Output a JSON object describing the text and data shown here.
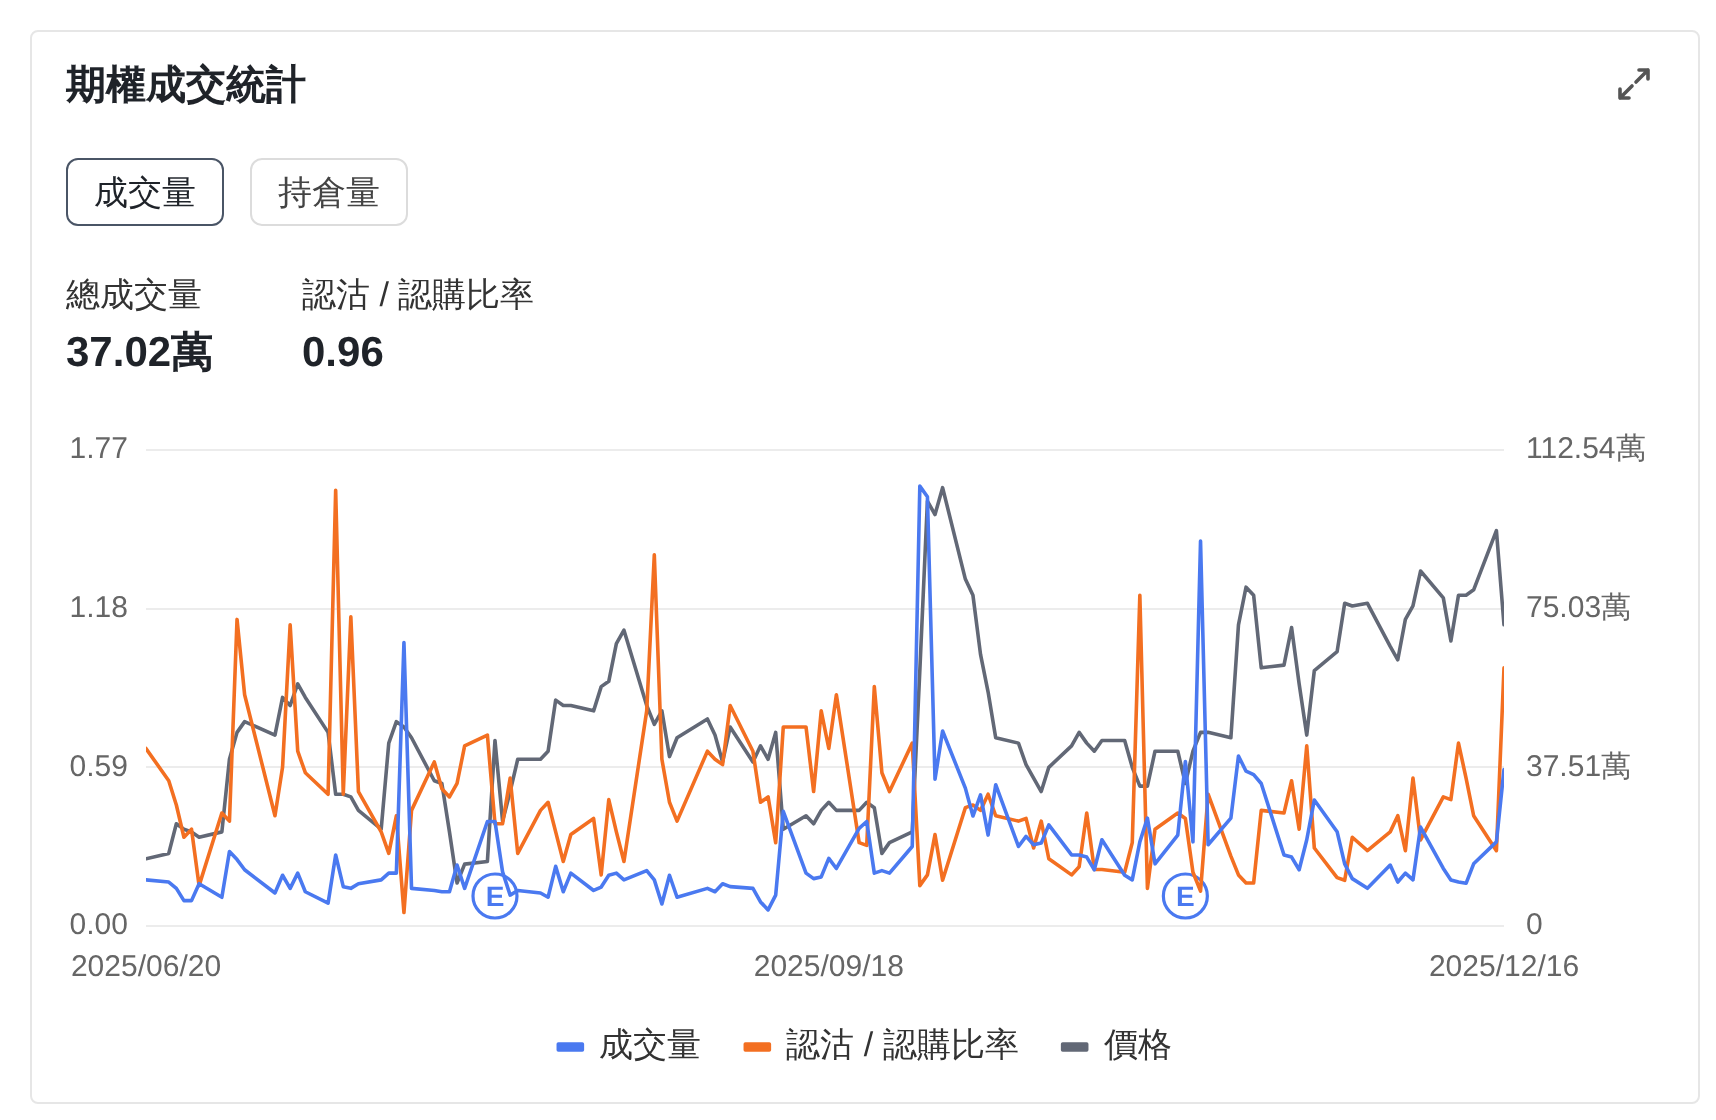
{
  "chart_data": {
    "type": "line",
    "title": "期權成交統計",
    "annotations": [
      "成交量",
      "持倉量",
      "總成交量",
      "37.02萬",
      "認沽 / 認購比率",
      "0.96",
      {
        "text": "E",
        "x": "2025-08-05"
      },
      {
        "text": "E",
        "x": "2025-11-04"
      }
    ],
    "x": [
      "2025-06-20",
      "2025-06-23",
      "2025-06-24",
      "2025-06-25",
      "2025-06-26",
      "2025-06-27",
      "2025-06-30",
      "2025-07-01",
      "2025-07-02",
      "2025-07-03",
      "2025-07-07",
      "2025-07-08",
      "2025-07-09",
      "2025-07-10",
      "2025-07-11",
      "2025-07-14",
      "2025-07-15",
      "2025-07-16",
      "2025-07-17",
      "2025-07-18",
      "2025-07-21",
      "2025-07-22",
      "2025-07-23",
      "2025-07-24",
      "2025-07-25",
      "2025-07-28",
      "2025-07-29",
      "2025-07-30",
      "2025-07-31",
      "2025-08-01",
      "2025-08-04",
      "2025-08-05",
      "2025-08-06",
      "2025-08-07",
      "2025-08-08",
      "2025-08-11",
      "2025-08-12",
      "2025-08-13",
      "2025-08-14",
      "2025-08-15",
      "2025-08-18",
      "2025-08-19",
      "2025-08-20",
      "2025-08-21",
      "2025-08-22",
      "2025-08-25",
      "2025-08-26",
      "2025-08-27",
      "2025-08-28",
      "2025-08-29",
      "2025-09-02",
      "2025-09-03",
      "2025-09-04",
      "2025-09-05",
      "2025-09-08",
      "2025-09-09",
      "2025-09-10",
      "2025-09-11",
      "2025-09-12",
      "2025-09-15",
      "2025-09-16",
      "2025-09-17",
      "2025-09-18",
      "2025-09-19",
      "2025-09-22",
      "2025-09-23",
      "2025-09-24",
      "2025-09-25",
      "2025-09-26",
      "2025-09-29",
      "2025-09-30",
      "2025-10-01",
      "2025-10-02",
      "2025-10-03",
      "2025-10-06",
      "2025-10-07",
      "2025-10-08",
      "2025-10-09",
      "2025-10-10",
      "2025-10-13",
      "2025-10-14",
      "2025-10-15",
      "2025-10-16",
      "2025-10-17",
      "2025-10-20",
      "2025-10-21",
      "2025-10-22",
      "2025-10-23",
      "2025-10-24",
      "2025-10-27",
      "2025-10-28",
      "2025-10-29",
      "2025-10-30",
      "2025-10-31",
      "2025-11-03",
      "2025-11-04",
      "2025-11-05",
      "2025-11-06",
      "2025-11-07",
      "2025-11-10",
      "2025-11-11",
      "2025-11-12",
      "2025-11-13",
      "2025-11-14",
      "2025-11-17",
      "2025-11-18",
      "2025-11-19",
      "2025-11-20",
      "2025-11-21",
      "2025-11-24",
      "2025-11-25",
      "2025-11-26",
      "2025-11-28",
      "2025-12-01",
      "2025-12-02",
      "2025-12-03",
      "2025-12-04",
      "2025-12-05",
      "2025-12-08",
      "2025-12-09",
      "2025-12-10",
      "2025-12-11",
      "2025-12-12",
      "2025-12-15",
      "2025-12-16"
    ],
    "series": [
      {
        "name": "成交量",
        "color": "#4a79f0",
        "axis": "y2",
        "values": [
          10.9,
          10.4,
          8.9,
          6.0,
          6.0,
          10.0,
          6.8,
          17.6,
          15.7,
          13.3,
          7.8,
          12.0,
          8.9,
          12.5,
          8.1,
          5.4,
          16.8,
          9.3,
          8.9,
          10.0,
          10.9,
          12.5,
          12.5,
          67.0,
          8.9,
          8.4,
          8.1,
          8.1,
          14.4,
          8.9,
          24.7,
          24.7,
          12.8,
          7.3,
          8.4,
          7.8,
          6.8,
          14.1,
          8.1,
          12.5,
          8.4,
          9.2,
          12.0,
          12.5,
          10.9,
          13.1,
          10.9,
          5.2,
          12.0,
          6.8,
          8.9,
          8.1,
          10.0,
          9.3,
          8.9,
          5.7,
          3.8,
          7.3,
          27.1,
          12.5,
          11.2,
          11.6,
          16.0,
          13.6,
          23.1,
          24.7,
          12.5,
          13.1,
          12.5,
          18.8,
          104.0,
          101.5,
          34.7,
          46.1,
          32.6,
          26.0,
          31.0,
          21.5,
          33.4,
          18.8,
          21.2,
          19.2,
          19.6,
          23.9,
          16.8,
          16.8,
          16.3,
          13.3,
          20.4,
          12.0,
          10.9,
          19.9,
          25.5,
          14.7,
          21.5,
          38.9,
          19.9,
          91.0,
          19.2,
          25.5,
          40.2,
          36.6,
          35.8,
          33.7,
          16.8,
          16.3,
          13.3,
          20.4,
          29.8,
          22.3,
          14.7,
          11.2,
          8.9,
          14.4,
          10.4,
          12.5,
          10.9,
          23.4,
          13.6,
          10.9,
          10.4,
          10.1,
          14.7,
          19.9,
          37.0
        ]
      },
      {
        "name": "認沽 / 認購比率",
        "color": "#f36f21",
        "values": [
          0.66,
          0.54,
          0.45,
          0.33,
          0.36,
          0.15,
          0.42,
          0.39,
          1.14,
          0.86,
          0.41,
          0.59,
          1.12,
          0.65,
          0.57,
          0.49,
          1.62,
          0.49,
          1.15,
          0.5,
          0.35,
          0.27,
          0.41,
          0.05,
          0.43,
          0.61,
          0.51,
          0.48,
          0.53,
          0.67,
          0.71,
          0.38,
          0.38,
          0.55,
          0.27,
          0.43,
          0.46,
          0.35,
          0.24,
          0.34,
          0.4,
          0.19,
          0.47,
          0.35,
          0.24,
          0.8,
          1.38,
          0.62,
          0.46,
          0.39,
          0.65,
          0.62,
          0.6,
          0.82,
          0.65,
          0.46,
          0.48,
          0.31,
          0.74,
          0.74,
          0.5,
          0.8,
          0.66,
          0.86,
          0.31,
          0.3,
          0.89,
          0.57,
          0.5,
          0.68,
          0.15,
          0.19,
          0.34,
          0.17,
          0.44,
          0.45,
          0.43,
          0.49,
          0.41,
          0.39,
          0.4,
          0.29,
          0.39,
          0.25,
          0.19,
          0.22,
          0.42,
          0.21,
          0.21,
          0.2,
          0.31,
          1.23,
          0.14,
          0.36,
          0.42,
          0.4,
          0.2,
          0.13,
          0.49,
          0.26,
          0.19,
          0.16,
          0.16,
          0.43,
          0.42,
          0.54,
          0.36,
          0.67,
          0.29,
          0.18,
          0.17,
          0.33,
          0.28,
          0.35,
          0.41,
          0.28,
          0.55,
          0.32,
          0.48,
          0.47,
          0.68,
          0.55,
          0.41,
          0.28,
          0.96
        ]
      },
      {
        "name": "價格",
        "color": "#626876",
        "values": [
          0.25,
          0.27,
          0.38,
          0.36,
          0.35,
          0.33,
          0.35,
          0.62,
          0.72,
          0.76,
          0.71,
          0.85,
          0.82,
          0.9,
          0.85,
          0.72,
          0.49,
          0.49,
          0.48,
          0.43,
          0.36,
          0.68,
          0.76,
          0.74,
          0.7,
          0.54,
          0.53,
          0.35,
          0.16,
          0.23,
          0.24,
          0.69,
          0.39,
          0.5,
          0.62,
          0.62,
          0.65,
          0.84,
          0.82,
          0.82,
          0.8,
          0.89,
          0.91,
          1.05,
          1.1,
          0.82,
          0.75,
          0.8,
          0.63,
          0.7,
          0.77,
          0.71,
          0.61,
          0.74,
          0.61,
          0.67,
          0.62,
          0.72,
          0.36,
          0.41,
          0.38,
          0.43,
          0.46,
          0.43,
          0.43,
          0.46,
          0.44,
          0.27,
          0.31,
          0.35,
          0.95,
          1.58,
          1.53,
          1.63,
          1.29,
          1.23,
          1.01,
          0.87,
          0.7,
          0.68,
          0.6,
          0.55,
          0.5,
          0.59,
          0.67,
          0.72,
          0.68,
          0.65,
          0.69,
          0.69,
          0.59,
          0.52,
          0.52,
          0.65,
          0.65,
          0.53,
          0.65,
          0.72,
          0.72,
          0.7,
          1.12,
          1.26,
          1.23,
          0.96,
          0.97,
          1.11,
          0.9,
          0.71,
          0.95,
          1.02,
          1.2,
          1.19,
          1.2,
          1.04,
          0.99,
          1.14,
          1.19,
          1.32,
          1.22,
          1.06,
          1.23,
          1.23,
          1.25,
          1.47,
          1.12
        ]
      }
    ],
    "xlim": [
      "2025-06-20",
      "2025-12-16"
    ],
    "xticks": [
      {
        "value": "2025-06-20",
        "label": "2025/06/20"
      },
      {
        "value": "2025-09-18",
        "label": "2025/09/18"
      },
      {
        "value": "2025-12-16",
        "label": "2025/12/16"
      }
    ],
    "ylim": [
      0,
      1.77
    ],
    "yticks": [
      {
        "value": 0,
        "label": "0.00"
      },
      0.59,
      1.18,
      1.77
    ],
    "y2lim": [
      0,
      112.54
    ],
    "y2ticks": [
      0,
      {
        "value": 37.51,
        "label": "37.51萬"
      },
      {
        "value": 75.03,
        "label": "75.03萬"
      },
      {
        "value": 112.54,
        "label": "112.54萬"
      }
    ],
    "grid": "y",
    "legend": "bottom",
    "marker": "none",
    "line_style": "solid"
  }
}
